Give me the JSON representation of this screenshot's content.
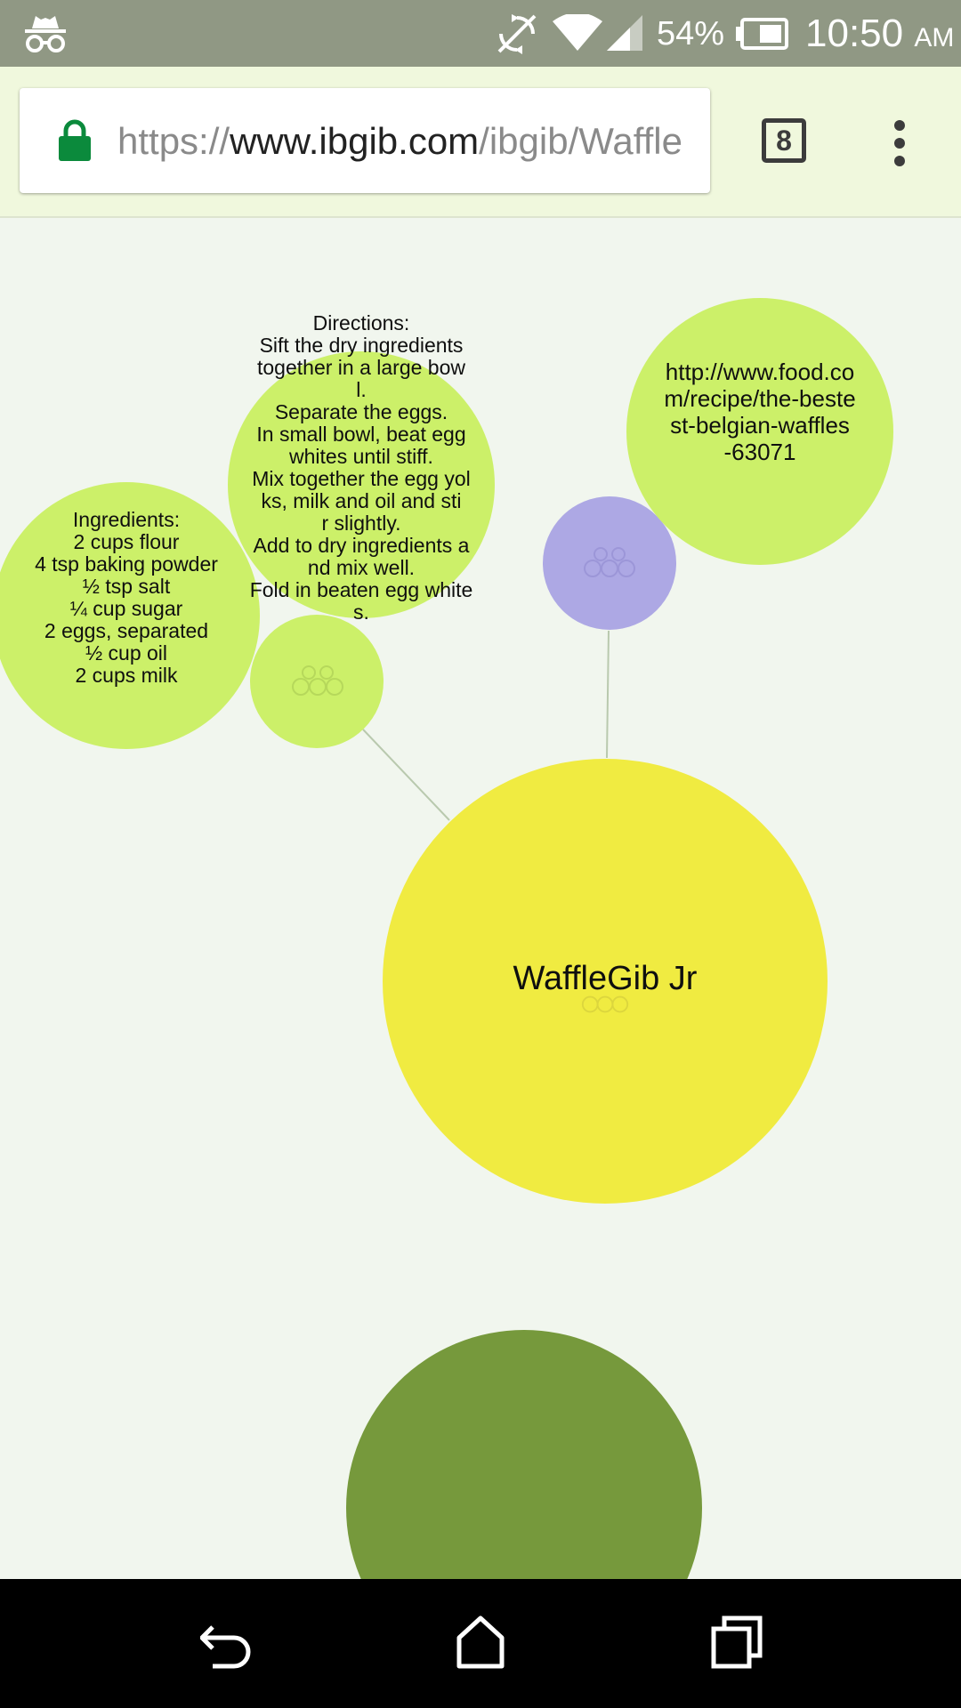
{
  "status_bar": {
    "battery_percent": "54%",
    "time": "10:50",
    "ampm": "AM",
    "background_color": "#909884"
  },
  "browser": {
    "url_scheme": "https://",
    "url_host": "www.ibgib.com",
    "url_path": "/ibgib/Waffle",
    "tab_count": "8",
    "lock_color": "#0b8a3c",
    "toolbar_color": "#f0f8dd"
  },
  "graph": {
    "center": {
      "label": "WaffleGib Jr",
      "color": "#f0eb41"
    },
    "ingredients": {
      "text": "Ingredients:\n2 cups flour\n4 tsp baking powder\n½ tsp salt\n¼ cup sugar\n2 eggs, separated\n½ cup oil\n2 cups milk",
      "color": "#ccf069"
    },
    "directions": {
      "text": "Directions:\nSift the dry ingredients\ntogether in a large bow\nl.\nSeparate the eggs.\nIn small bowl, beat egg\nwhites until stiff.\nMix together the egg yol\nks, milk and oil and sti\nr slightly.\nAdd to dry ingredients a\nnd mix well.\nFold in beaten egg white\ns.",
      "color": "#ccf069"
    },
    "link": {
      "text": "http://www.food.co\nm/recipe/the-beste\nst-belgian-waffles\n-63071",
      "color": "#ccf069"
    },
    "small_green_node": {
      "icon": "ibgib-logo-icon",
      "color": "#ccf069"
    },
    "purple_node": {
      "icon": "ibgib-logo-icon",
      "color": "#ada8e4"
    },
    "bottom_node": {
      "color": "#76993c"
    }
  }
}
